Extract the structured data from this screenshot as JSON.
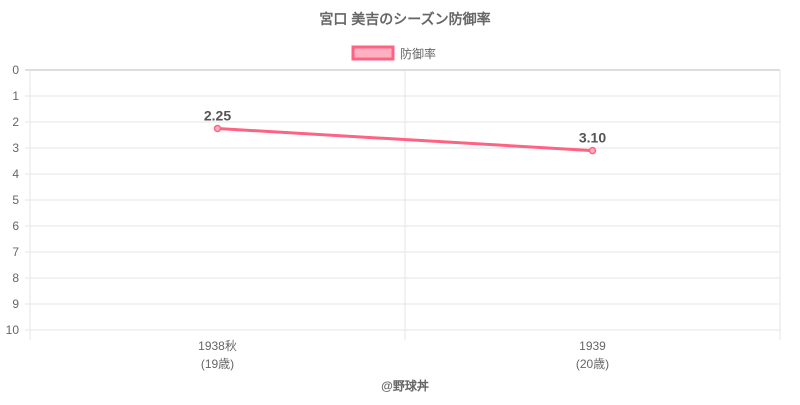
{
  "chart_data": {
    "type": "line",
    "title": "宮口 美吉のシーズン防御率",
    "categories": [
      [
        "1938秋",
        "(19歳)"
      ],
      [
        "1939",
        "(20歳)"
      ]
    ],
    "series": [
      {
        "name": "防御率",
        "values": [
          2.25,
          3.1
        ],
        "data_labels": [
          "2.25",
          "3.10"
        ],
        "color": "#ff6384",
        "fill": "#ffb1c1"
      }
    ],
    "ylim": [
      0,
      10
    ],
    "y_reversed": true,
    "yticks": [
      0,
      1,
      2,
      3,
      4,
      5,
      6,
      7,
      8,
      9,
      10
    ],
    "grid": true,
    "legend": "top"
  },
  "footer": "@野球丼"
}
